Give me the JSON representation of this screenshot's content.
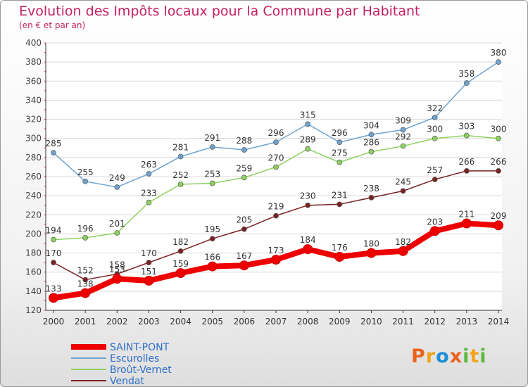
{
  "header": {
    "title": "Evolution des Impôts locaux pour la Commune par Habitant",
    "subtitle": "(en € et par an)"
  },
  "logo": {
    "text": "Proxiti",
    "colors": [
      "#e8641e",
      "#f2a31b",
      "#1e8fd6",
      "#e8641e",
      "#59b93d",
      "#f2a31b",
      "#59b93d"
    ]
  },
  "chart_data": {
    "type": "line",
    "title": "Evolution des Impôts locaux pour la Commune par Habitant",
    "subtitle": "(en € et par an)",
    "x": [
      "2000",
      "2001",
      "2002",
      "2003",
      "2004",
      "2005",
      "2006",
      "2007",
      "2008",
      "2009",
      "2010",
      "2011",
      "2012",
      "2013",
      "2014"
    ],
    "ylim": [
      120,
      400
    ],
    "yticks": [
      120,
      140,
      160,
      180,
      200,
      220,
      240,
      260,
      280,
      300,
      320,
      340,
      360,
      380,
      400
    ],
    "grid": "horizontal",
    "legend_position": "bottom-left",
    "series": [
      {
        "name": "SAINT-PONT",
        "color": "#ee0000",
        "values": [
          133,
          138,
          153,
          151,
          159,
          166,
          167,
          173,
          184,
          176,
          180,
          182,
          203,
          211,
          209
        ],
        "labels": [
          "133",
          "138",
          "153",
          "151",
          "159",
          "166",
          "167",
          "173",
          "184",
          "176",
          "180",
          "182",
          "203",
          "211",
          "209"
        ]
      },
      {
        "name": "Escurolles",
        "color": "#6fa3d0",
        "values": [
          285,
          255,
          249,
          263,
          281,
          291,
          288,
          296,
          315,
          296,
          304,
          309,
          322,
          358,
          380
        ],
        "labels": [
          "285",
          "255",
          "249",
          "263",
          "281",
          "291",
          "288",
          "296",
          "315",
          "296",
          "304",
          "309",
          "322",
          "358",
          "380"
        ]
      },
      {
        "name": "Broût-Vernet",
        "color": "#8ed160",
        "values": [
          194,
          196,
          201,
          233,
          252,
          253,
          259,
          270,
          289,
          275,
          286,
          292,
          300,
          303,
          300
        ],
        "labels": [
          "194",
          "196",
          "201",
          "233",
          "252",
          "253",
          "259",
          "270",
          "289",
          "275",
          "286",
          "292",
          "300",
          "303",
          "300"
        ]
      },
      {
        "name": "Vendat",
        "color": "#7a2222",
        "values": [
          170,
          152,
          158,
          170,
          182,
          195,
          205,
          219,
          230,
          231,
          238,
          245,
          257,
          266,
          266
        ],
        "labels": [
          "170",
          "152",
          "158",
          "170",
          "182",
          "195",
          "205",
          "219",
          "230",
          "231",
          "238",
          "245",
          "257",
          "266",
          "266"
        ]
      }
    ]
  }
}
